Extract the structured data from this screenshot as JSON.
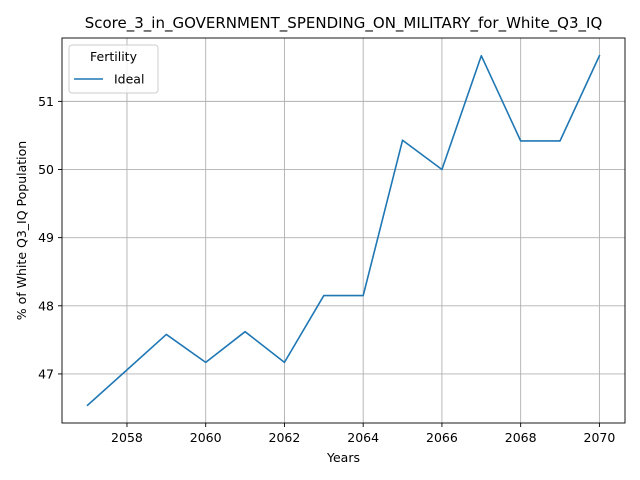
{
  "chart_data": {
    "type": "line",
    "title": "Score_3_in_GOVERNMENT_SPENDING_ON_MILITARY_for_White_Q3_IQ",
    "xlabel": "Years",
    "ylabel": "% of White Q3_IQ Population",
    "x": [
      2057,
      2058,
      2059,
      2060,
      2061,
      2062,
      2063,
      2064,
      2065,
      2066,
      2067,
      2068,
      2069,
      2070
    ],
    "series": [
      {
        "name": "Ideal",
        "color": "#1f77b4",
        "values": [
          46.54,
          47.06,
          47.58,
          47.17,
          47.62,
          47.17,
          48.15,
          48.15,
          50.43,
          50.0,
          51.67,
          50.42,
          50.42,
          51.67
        ]
      }
    ],
    "xlim": [
      2056.35,
      2070.65
    ],
    "ylim": [
      46.28,
      51.93
    ],
    "xticks": [
      2058,
      2060,
      2062,
      2064,
      2066,
      2068,
      2070
    ],
    "yticks": [
      47,
      48,
      49,
      50,
      51
    ],
    "xtick_labels": [
      "2058",
      "2060",
      "2062",
      "2064",
      "2066",
      "2068",
      "2070"
    ],
    "ytick_labels": [
      "47",
      "48",
      "49",
      "50",
      "51"
    ],
    "grid": true,
    "legend": {
      "title": "Fertility",
      "placement": "top-left"
    }
  }
}
